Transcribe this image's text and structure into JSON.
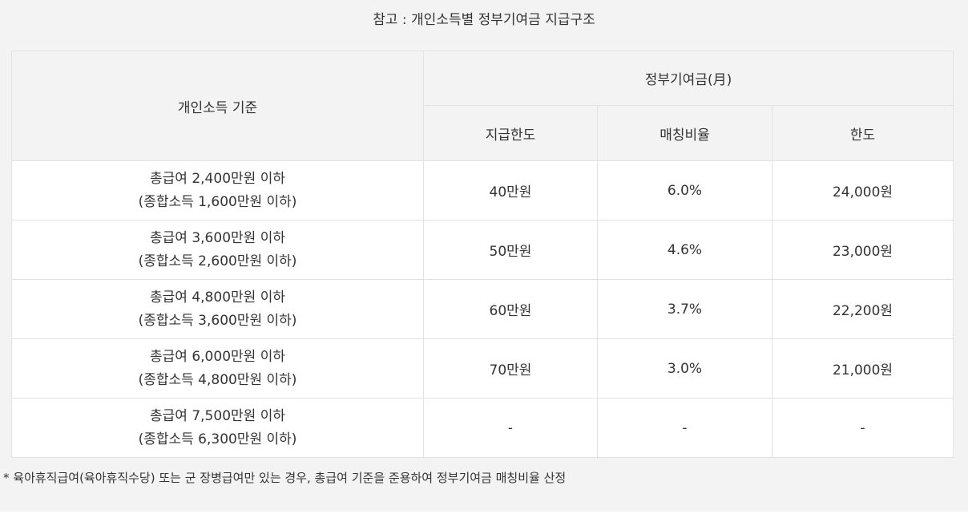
{
  "caption": "참고 : 개인소득별 정부기여금 지급구조",
  "table": {
    "header": {
      "income_basis": "개인소득 기준",
      "gov_contribution": "정부기여금(月)",
      "payment_limit": "지급한도",
      "matching_ratio": "매칭비율",
      "limit": "한도"
    },
    "rows": [
      {
        "income_line1": "총급여 2,400만원 이하",
        "income_line2": "(종합소득 1,600만원 이하)",
        "payment_limit": "40만원",
        "matching_ratio": "6.0%",
        "limit": "24,000원"
      },
      {
        "income_line1": "총급여 3,600만원 이하",
        "income_line2": "(종합소득 2,600만원 이하)",
        "payment_limit": "50만원",
        "matching_ratio": "4.6%",
        "limit": "23,000원"
      },
      {
        "income_line1": "총급여 4,800만원 이하",
        "income_line2": "(종합소득 3,600만원 이하)",
        "payment_limit": "60만원",
        "matching_ratio": "3.7%",
        "limit": "22,200원"
      },
      {
        "income_line1": "총급여 6,000만원 이하",
        "income_line2": "(종합소득 4,800만원 이하)",
        "payment_limit": "70만원",
        "matching_ratio": "3.0%",
        "limit": "21,000원"
      },
      {
        "income_line1": "총급여 7,500만원 이하",
        "income_line2": "(종합소득 6,300만원 이하)",
        "payment_limit": "-",
        "matching_ratio": "-",
        "limit": "-"
      }
    ]
  },
  "footnote": "* 육아휴직급여(육아휴직수당) 또는 군 장병급여만 있는 경우, 총급여 기준을 준용하여 정부기여금 매칭비율 산정",
  "colors": {
    "background": "#f3f3f3",
    "cell": "#ffffff",
    "border": "#e2e2e2",
    "text": "#333333"
  }
}
